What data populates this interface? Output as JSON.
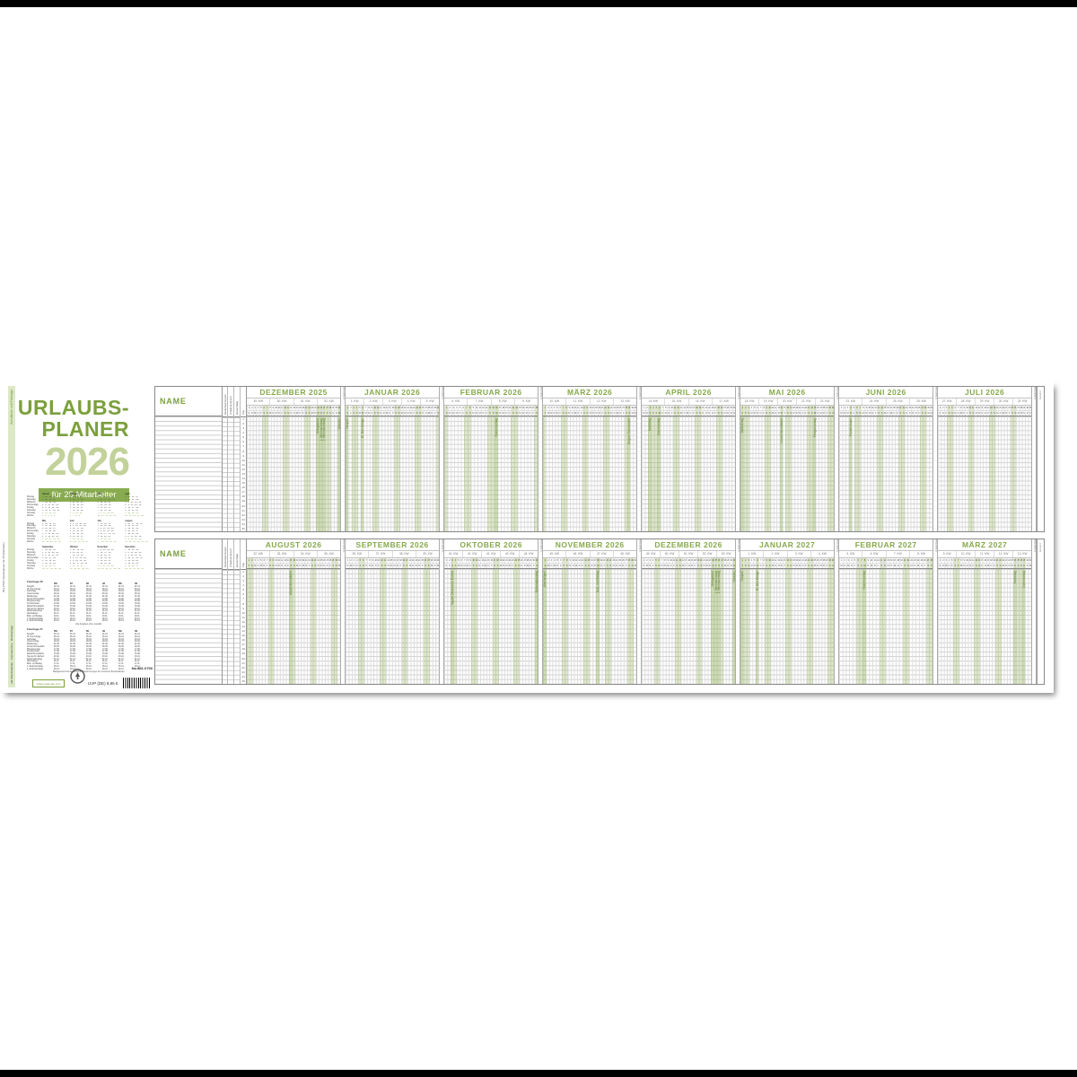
{
  "accent_colors": {
    "green": "#7ba03c",
    "green_light": "#c2d29a",
    "green_bar": "#88ab4f",
    "weekend_fill": "#dbe6bf"
  },
  "left_panel": {
    "edge_caption": "951-0790 Urlaubsplaner für 25 Mitarbeiter",
    "edge_green": "Schulferien und Feiertage",
    "edge_dark": "alle Bundesländer · Ferientermine · Brückentage",
    "title_line1": "URLAUBS-",
    "title_line2": "PLANER",
    "year": "2026",
    "subtitle": "für 25 Mitarbeiter",
    "article_no": "Nr. 951-0790",
    "price": "UVP (DE) 8,95 €",
    "brand": "zettler-kalender.com",
    "fine_print": [
      "Alle Angaben ohne Gewähr.",
      "Maßgebend sind die amtlichen Bestimmungen der einzelnen Bundesländer."
    ],
    "mini_calendar": {
      "row_labels": [
        "Montag",
        "Dienstag",
        "Mittwoch",
        "Donnerstag",
        "Freitag",
        "Samstag",
        "Sonntag",
        "Woche"
      ],
      "months": [
        {
          "name": "Januar",
          "rows": [
            "5 12 19 26",
            "6 13 20 27",
            "7 14 21 28",
            "1 8 15 22 29",
            "2 9 16 23 30",
            "3 10 17 24 31",
            "4 11 18 25",
            "1 2 3 4 5"
          ]
        },
        {
          "name": "Februar",
          "rows": [
            "2 9 16 23",
            "3 10 17 24",
            "4 11 18 25",
            "5 12 19 26",
            "6 13 20 27",
            "7 14 21 28",
            "1 8 15 22",
            "6 7 8 9"
          ]
        },
        {
          "name": "März",
          "rows": [
            "2 9 16 23 30",
            "3 10 17 24 31",
            "4 11 18 25",
            "5 12 19 26",
            "6 13 20 27",
            "7 14 21 28",
            "1 8 15 22 29",
            "10 11 12 13 14"
          ]
        },
        {
          "name": "April",
          "rows": [
            "6 13 20 27",
            "7 14 21 28",
            "1 8 15 22 29",
            "2 9 16 23 30",
            "3 10 17 24",
            "4 11 18 25",
            "5 12 19 26",
            "14 15 16 17 18"
          ]
        },
        {
          "name": "Mai",
          "rows": [
            "4 11 18 25",
            "5 12 19 26",
            "6 13 20 27",
            "7 14 21 28",
            "1 8 15 22 29",
            "2 9 16 23 30",
            "3 10 17 24 31",
            "18 19 20 21 22"
          ]
        },
        {
          "name": "Juni",
          "rows": [
            "1 8 15 22 29",
            "2 9 16 23 30",
            "3 10 17 24",
            "4 11 18 25",
            "5 12 19 26",
            "6 13 20 27",
            "7 14 21 28",
            "23 24 25 26 27"
          ]
        },
        {
          "name": "Juli",
          "rows": [
            "6 13 20 27",
            "7 14 21 28",
            "1 8 15 22 29",
            "2 9 16 23 30",
            "3 10 17 24 31",
            "4 11 18 25",
            "5 12 19 26",
            "27 28 29 30 31"
          ]
        },
        {
          "name": "August",
          "rows": [
            "3 10 17 24 31",
            "4 11 18 25",
            "5 12 19 26",
            "6 13 20 27",
            "7 14 21 28",
            "1 8 15 22 29",
            "2 9 16 23 30",
            "31 32 33 34 35 36"
          ]
        },
        {
          "name": "September",
          "rows": [
            "7 14 21 28",
            "1 8 15 22 29",
            "2 9 16 23 30",
            "3 10 17 24",
            "4 11 18 25",
            "5 12 19 26",
            "6 13 20 27",
            "36 37 38 39 40"
          ]
        },
        {
          "name": "Oktober",
          "rows": [
            "5 12 19 26",
            "6 13 20 27",
            "7 14 21 28",
            "1 8 15 22 29",
            "2 9 16 23 30",
            "3 10 17 24 31",
            "4 11 18 25",
            "40 41 42 43 44"
          ]
        },
        {
          "name": "November",
          "rows": [
            "2 9 16 23 30",
            "3 10 17 24",
            "4 11 18 25",
            "5 12 19 26",
            "6 13 20 27",
            "7 14 21 28",
            "1 8 15 22 29",
            "44 45 46 47 48 49"
          ]
        },
        {
          "name": "Dezember",
          "rows": [
            "7 14 21 28",
            "1 8 15 22 29",
            "2 9 16 23 30",
            "3 10 17 24 31",
            "4 11 18 25",
            "5 12 19 26",
            "6 13 20 27",
            "49 50 51 52 53"
          ]
        }
      ]
    },
    "holiday_tables": [
      {
        "title": "Feiertage 26",
        "regions": [
          "BW",
          "BY",
          "BE",
          "HE",
          "NW",
          "SN"
        ],
        "rows": [
          {
            "n": "Neujahr",
            "d": "01.01."
          },
          {
            "n": "Hl. Drei Könige",
            "d": "06.01."
          },
          {
            "n": "Karfreitag",
            "d": "03.04."
          },
          {
            "n": "Ostermontag",
            "d": "06.04."
          },
          {
            "n": "Maifeiertag",
            "d": "01.05."
          },
          {
            "n": "Christi Himmelfahrt",
            "d": "14.05."
          },
          {
            "n": "Pfingstmontag",
            "d": "25.05."
          },
          {
            "n": "Fronleichnam",
            "d": "04.06."
          },
          {
            "n": "Mariä Himmelfahrt",
            "d": "15.08."
          },
          {
            "n": "Tag der Dt. Einheit",
            "d": "03.10."
          },
          {
            "n": "Reformationstag",
            "d": "31.10."
          },
          {
            "n": "Allerheiligen",
            "d": "01.11."
          },
          {
            "n": "Buß- und Bettag",
            "d": "18.11."
          },
          {
            "n": "1. Weihnachtstag",
            "d": "25.12."
          },
          {
            "n": "2. Weihnachtstag",
            "d": "26.12."
          }
        ]
      },
      {
        "title": "Feiertage 27",
        "regions": [
          "BW",
          "BY",
          "BE",
          "HE",
          "NW",
          "SN"
        ],
        "rows": [
          {
            "n": "Neujahr",
            "d": "01.01."
          },
          {
            "n": "Hl. Drei Könige",
            "d": "06.01."
          },
          {
            "n": "Karfreitag",
            "d": "26.03."
          },
          {
            "n": "Ostermontag",
            "d": "29.03."
          },
          {
            "n": "Maifeiertag",
            "d": "01.05."
          },
          {
            "n": "Christi Himmelfahrt",
            "d": "06.05."
          },
          {
            "n": "Pfingstmontag",
            "d": "17.05."
          },
          {
            "n": "Fronleichnam",
            "d": "27.05."
          },
          {
            "n": "Mariä Himmelfahrt",
            "d": "15.08."
          },
          {
            "n": "Tag der Dt. Einheit",
            "d": "03.10."
          },
          {
            "n": "Reformationstag",
            "d": "31.10."
          },
          {
            "n": "Allerheiligen",
            "d": "01.11."
          },
          {
            "n": "Buß- und Bettag",
            "d": "17.11."
          },
          {
            "n": "1. Weihnachtstag",
            "d": "25.12."
          },
          {
            "n": "2. Weihnachtstag",
            "d": "26.12."
          }
        ]
      }
    ]
  },
  "planner": {
    "name_label": "NAME",
    "side_cols": [
      "Resturlaub Vorjahr",
      "Urlaubsanspruch",
      "Gesamttage"
    ],
    "row_col_label": "Tag",
    "separator_label": "Urlaubstage",
    "end_col_label": "Gesamt",
    "rows": 25,
    "day_letters": [
      "M",
      "D",
      "M",
      "D",
      "F",
      "S",
      "S"
    ],
    "bands": [
      {
        "months": [
          {
            "name": "DEZEMBER 2025",
            "days": 31,
            "start": 0,
            "kw": [
              "49. KW",
              "50. KW",
              "51. KW",
              "52. KW"
            ],
            "holidays": [
              {
                "d": 24,
                "n": "Heiligabend"
              },
              {
                "d": 25,
                "n": "1. Weihnachtstag"
              },
              {
                "d": 26,
                "n": "2. Weihnachtstag"
              },
              {
                "d": 31,
                "n": "Silvester"
              }
            ]
          },
          {
            "name": "JANUAR 2026",
            "days": 31,
            "start": 3,
            "kw": [
              "1. KW",
              "2. KW",
              "3. KW",
              "4. KW",
              "5. KW"
            ],
            "holidays": [
              {
                "d": 1,
                "n": "Neujahr"
              },
              {
                "d": 6,
                "n": "Hl. Drei Könige"
              }
            ]
          },
          {
            "name": "FEBRUAR 2026",
            "days": 28,
            "start": 6,
            "kw": [
              "6. KW",
              "7. KW",
              "8. KW",
              "9. KW"
            ],
            "holidays": [
              {
                "d": 16,
                "n": "Rosenmontag"
              }
            ]
          },
          {
            "name": "MÄRZ 2026",
            "days": 31,
            "start": 6,
            "kw": [
              "10. KW",
              "11. KW",
              "12. KW",
              "13. KW"
            ],
            "holidays": [
              {
                "d": 29,
                "n": "Beginn Sommerzeit"
              }
            ]
          },
          {
            "name": "APRIL 2026",
            "days": 30,
            "start": 2,
            "kw": [
              "14. KW",
              "15. KW",
              "16. KW",
              "17. KW"
            ],
            "holidays": [
              {
                "d": 3,
                "n": "Karfreitag"
              },
              {
                "d": 6,
                "n": "Ostermontag"
              }
            ]
          },
          {
            "name": "MAI 2026",
            "days": 31,
            "start": 4,
            "kw": [
              "18. KW",
              "19. KW",
              "20. KW",
              "21. KW",
              "22. KW"
            ],
            "holidays": [
              {
                "d": 1,
                "n": "Maifeiertag"
              },
              {
                "d": 14,
                "n": "Christi Himmelfahrt"
              },
              {
                "d": 25,
                "n": "Pfingstmontag"
              }
            ]
          },
          {
            "name": "JUNI 2026",
            "days": 30,
            "start": 0,
            "kw": [
              "23. KW",
              "24. KW",
              "25. KW",
              "26. KW"
            ],
            "holidays": [
              {
                "d": 4,
                "n": "Fronleichnam"
              }
            ]
          },
          {
            "name": "JULI 2026",
            "days": 31,
            "start": 2,
            "kw": [
              "27. KW",
              "28. KW",
              "29. KW",
              "30. KW",
              "31. KW"
            ],
            "holidays": []
          }
        ]
      },
      {
        "months": [
          {
            "name": "AUGUST 2026",
            "days": 31,
            "start": 5,
            "kw": [
              "32. KW",
              "33. KW",
              "34. KW",
              "35. KW"
            ],
            "holidays": [
              {
                "d": 15,
                "n": "Mariä Himmelfahrt"
              }
            ]
          },
          {
            "name": "SEPTEMBER 2026",
            "days": 30,
            "start": 1,
            "kw": [
              "36. KW",
              "37. KW",
              "38. KW",
              "39. KW"
            ],
            "holidays": []
          },
          {
            "name": "OKTOBER 2026",
            "days": 31,
            "start": 3,
            "kw": [
              "40. KW",
              "41. KW",
              "42. KW",
              "43. KW",
              "44. KW"
            ],
            "holidays": [
              {
                "d": 3,
                "n": "Tag der Deutschen Einheit"
              },
              {
                "d": 31,
                "n": "Reformationstag"
              }
            ]
          },
          {
            "name": "NOVEMBER 2026",
            "days": 30,
            "start": 6,
            "kw": [
              "45. KW",
              "46. KW",
              "47. KW",
              "48. KW"
            ],
            "holidays": [
              {
                "d": 1,
                "n": "Allerheiligen"
              },
              {
                "d": 18,
                "n": "Buß- und Bettag"
              }
            ]
          },
          {
            "name": "DEZEMBER 2026",
            "days": 31,
            "start": 1,
            "kw": [
              "49. KW",
              "50. KW",
              "51. KW",
              "52. KW",
              "53. KW"
            ],
            "holidays": [
              {
                "d": 24,
                "n": "Heiligabend"
              },
              {
                "d": 25,
                "n": "1. Weihnachtstag"
              },
              {
                "d": 26,
                "n": "2. Weihnachtstag"
              },
              {
                "d": 31,
                "n": "Silvester"
              }
            ]
          },
          {
            "name": "JANUAR 2027",
            "days": 31,
            "start": 4,
            "kw": [
              "1. KW",
              "2. KW",
              "3. KW",
              "4. KW"
            ],
            "holidays": [
              {
                "d": 1,
                "n": "Neujahr"
              },
              {
                "d": 6,
                "n": "Hl. Drei Könige"
              }
            ]
          },
          {
            "name": "FEBRUAR 2027",
            "days": 28,
            "start": 0,
            "kw": [
              "5. KW",
              "6. KW",
              "7. KW",
              "8. KW"
            ],
            "holidays": [
              {
                "d": 8,
                "n": "Rosenmontag"
              }
            ]
          },
          {
            "name": "MÄRZ 2027",
            "days": 31,
            "start": 0,
            "kw": [
              "9. KW",
              "10. KW",
              "11. KW",
              "12. KW",
              "13. KW"
            ],
            "holidays": [
              {
                "d": 26,
                "n": "Karfreitag"
              },
              {
                "d": 29,
                "n": "Ostermontag"
              }
            ]
          }
        ]
      }
    ]
  }
}
